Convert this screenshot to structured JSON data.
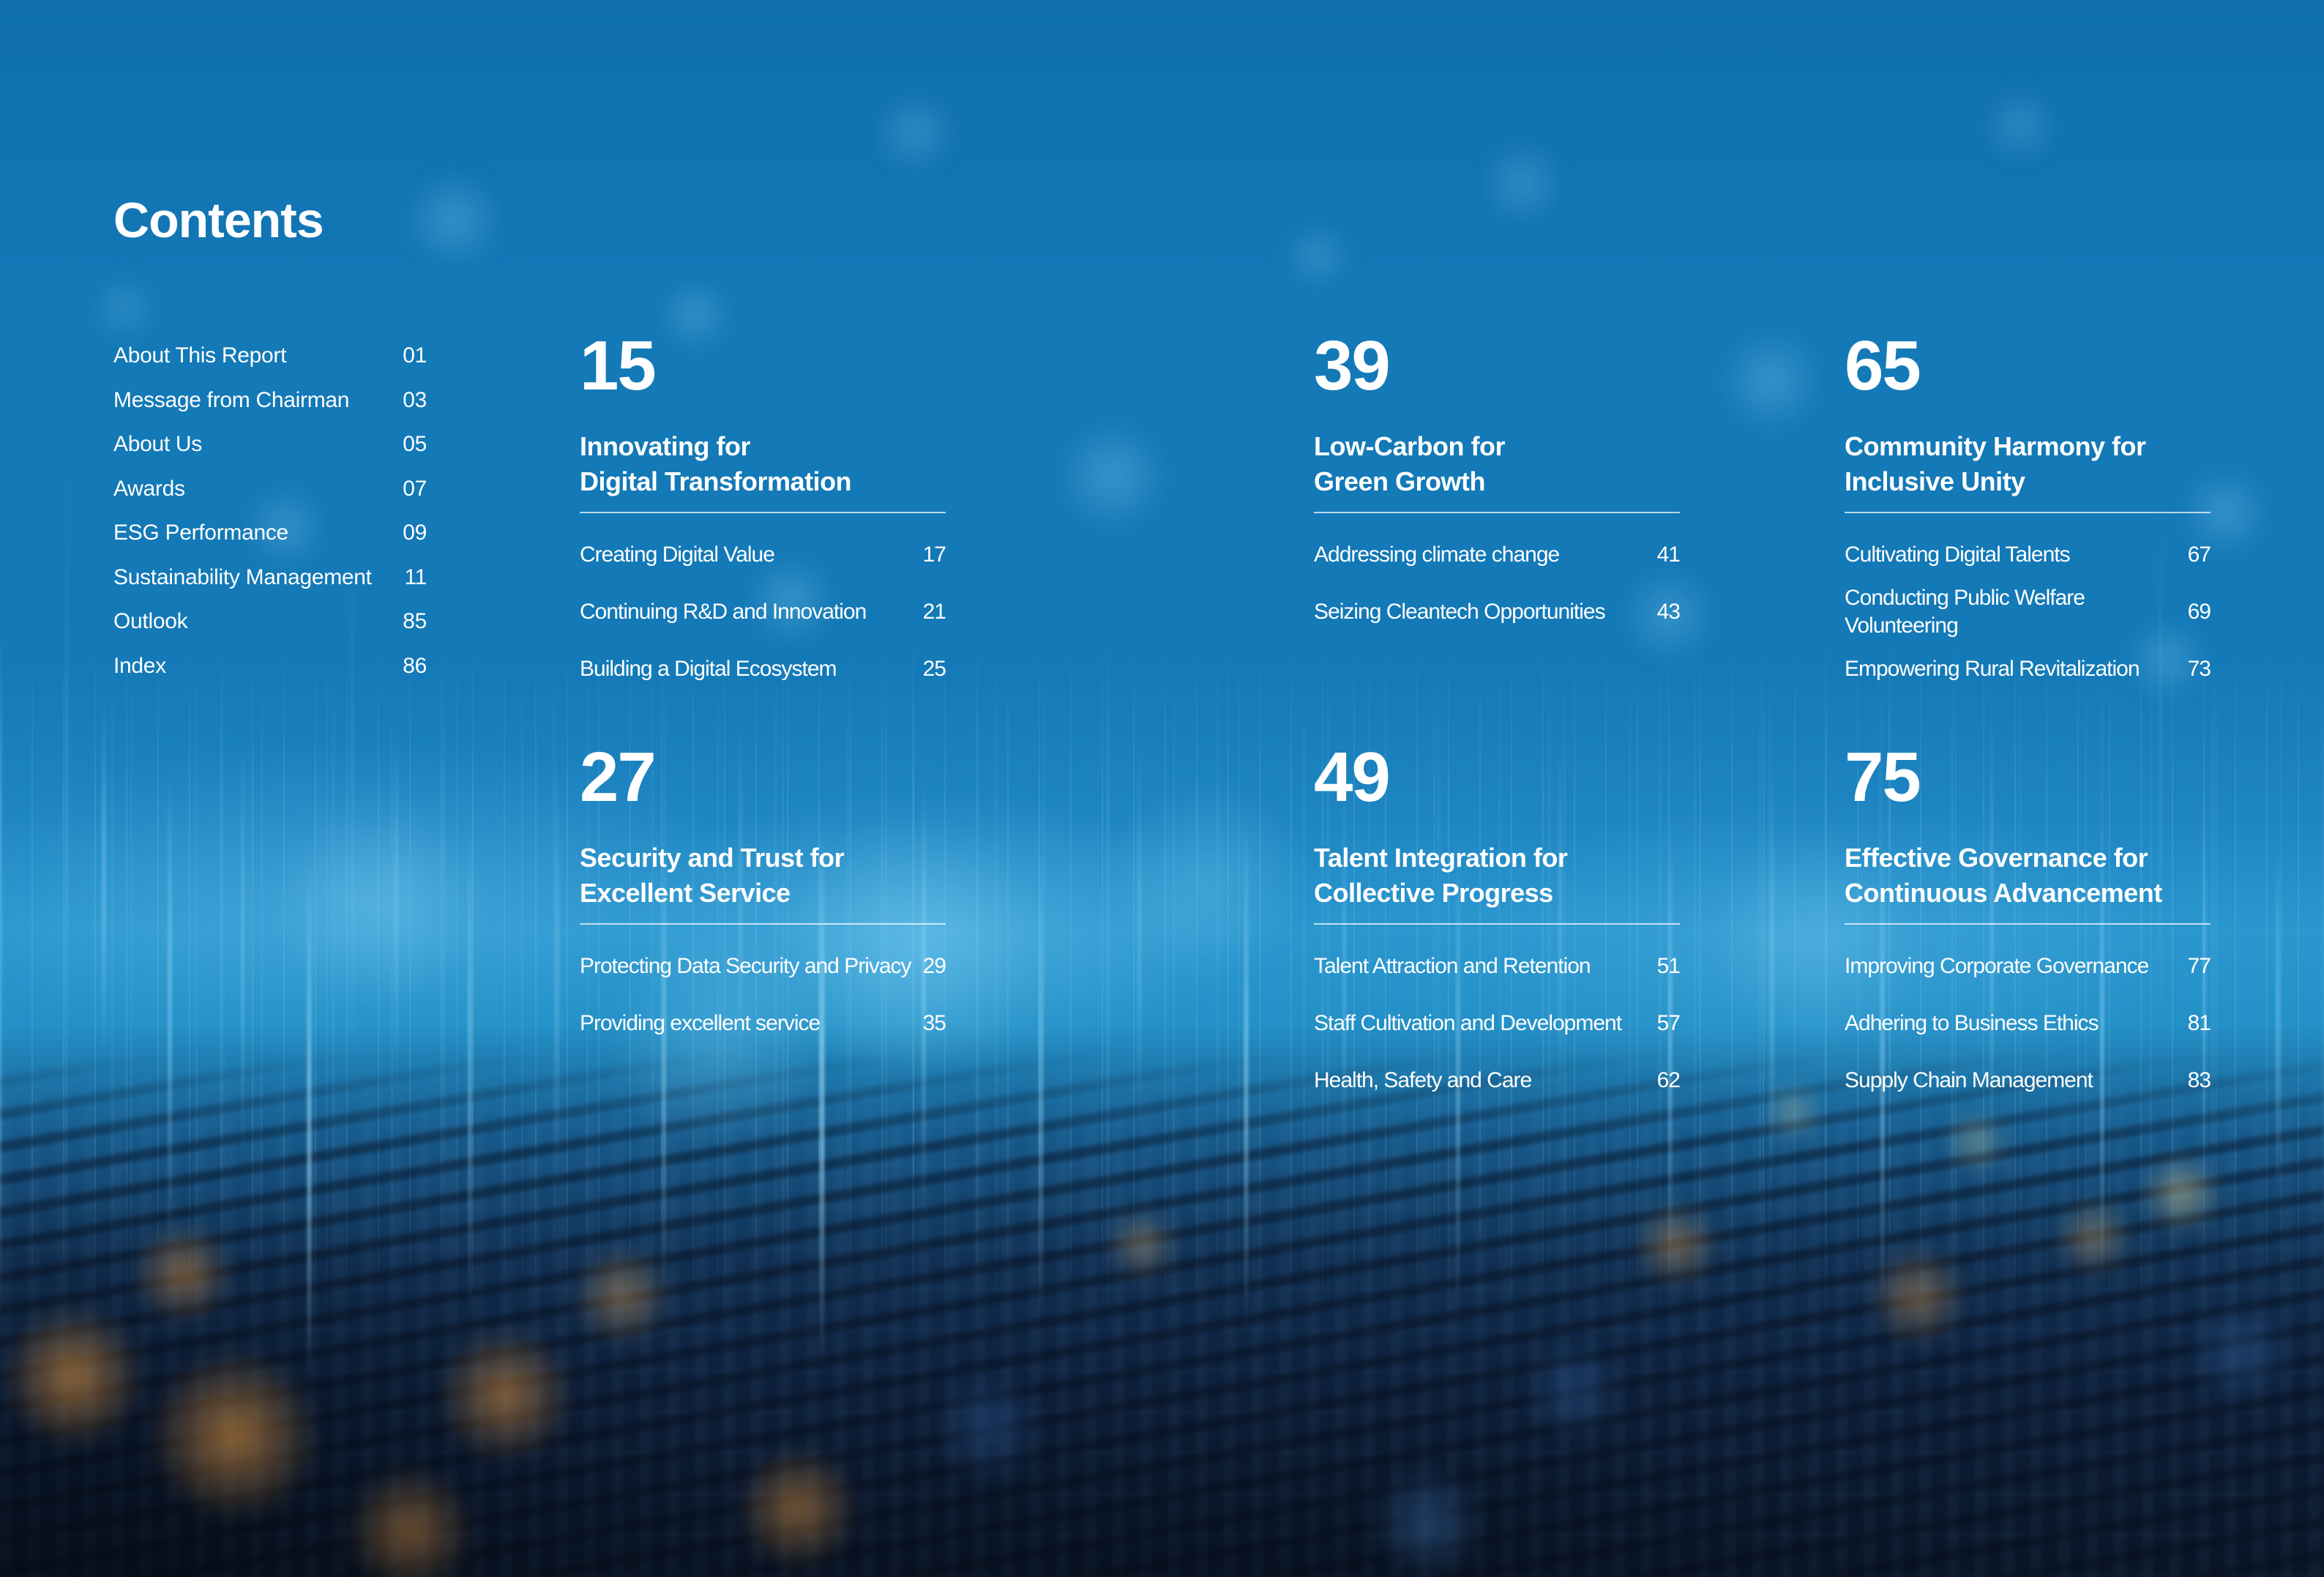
{
  "page": {
    "title": "Contents"
  },
  "front_matter": [
    {
      "label": "About This Report",
      "page": "01"
    },
    {
      "label": "Message from Chairman",
      "page": "03"
    },
    {
      "label": "About Us",
      "page": "05"
    },
    {
      "label": "Awards",
      "page": "07"
    },
    {
      "label": "ESG Performance",
      "page": "09"
    },
    {
      "label": "Sustainability Management",
      "page": "11"
    },
    {
      "label": "Outlook",
      "page": "85"
    },
    {
      "label": "Index",
      "page": "86"
    }
  ],
  "sections": [
    {
      "number": "15",
      "title_lines": [
        "Innovating for",
        "Digital Transformation"
      ],
      "items": [
        {
          "label": "Creating Digital Value",
          "page": "17"
        },
        {
          "label": "Continuing R&D and Innovation",
          "page": "21"
        },
        {
          "label": "Building a Digital Ecosystem",
          "page": "25"
        }
      ]
    },
    {
      "number": "39",
      "title_lines": [
        "Low-Carbon for",
        "Green Growth"
      ],
      "items": [
        {
          "label": "Addressing climate change",
          "page": "41"
        },
        {
          "label": "Seizing Cleantech Opportunities",
          "page": "43"
        }
      ]
    },
    {
      "number": "65",
      "title_lines": [
        "Community Harmony for",
        "Inclusive Unity"
      ],
      "items": [
        {
          "label": "Cultivating Digital Talents",
          "page": "67"
        },
        {
          "label": "Conducting Public Welfare Volunteering",
          "page": "69"
        },
        {
          "label": "Empowering Rural Revitalization",
          "page": "73"
        }
      ]
    },
    {
      "number": "27",
      "title_lines": [
        "Security and Trust for",
        "Excellent Service"
      ],
      "items": [
        {
          "label": "Protecting Data Security and Privacy",
          "page": "29"
        },
        {
          "label": "Providing excellent service",
          "page": "35"
        }
      ]
    },
    {
      "number": "49",
      "title_lines": [
        "Talent Integration for",
        "Collective Progress"
      ],
      "items": [
        {
          "label": "Talent Attraction and Retention",
          "page": "51"
        },
        {
          "label": "Staff Cultivation and Development",
          "page": "57"
        },
        {
          "label": "Health, Safety and Care",
          "page": "62"
        }
      ]
    },
    {
      "number": "75",
      "title_lines": [
        "Effective Governance for",
        "Continuous Advancement"
      ],
      "items": [
        {
          "label": "Improving Corporate Governance",
          "page": "77"
        },
        {
          "label": "Adhering to Business Ethics",
          "page": "81"
        },
        {
          "label": "Supply Chain Management",
          "page": "83"
        }
      ]
    }
  ],
  "colors": {
    "background_top": "#0f6fae",
    "background_mid": "#1379b7",
    "background_band": "#2b97cf",
    "background_dusk": "#175a8c",
    "background_deep": "#112f52",
    "background_bottom": "#0a1526",
    "text": "#ffffff",
    "divider": "rgba(255,255,255,0.7)",
    "bokeh_blue": "rgba(120,195,235,0.40)",
    "bokeh_orange": "rgba(228,152,66,0.60)",
    "bokeh_yellow": "rgba(236,216,150,0.50)",
    "streak_cyan": "rgba(170,230,255,0.85)"
  }
}
